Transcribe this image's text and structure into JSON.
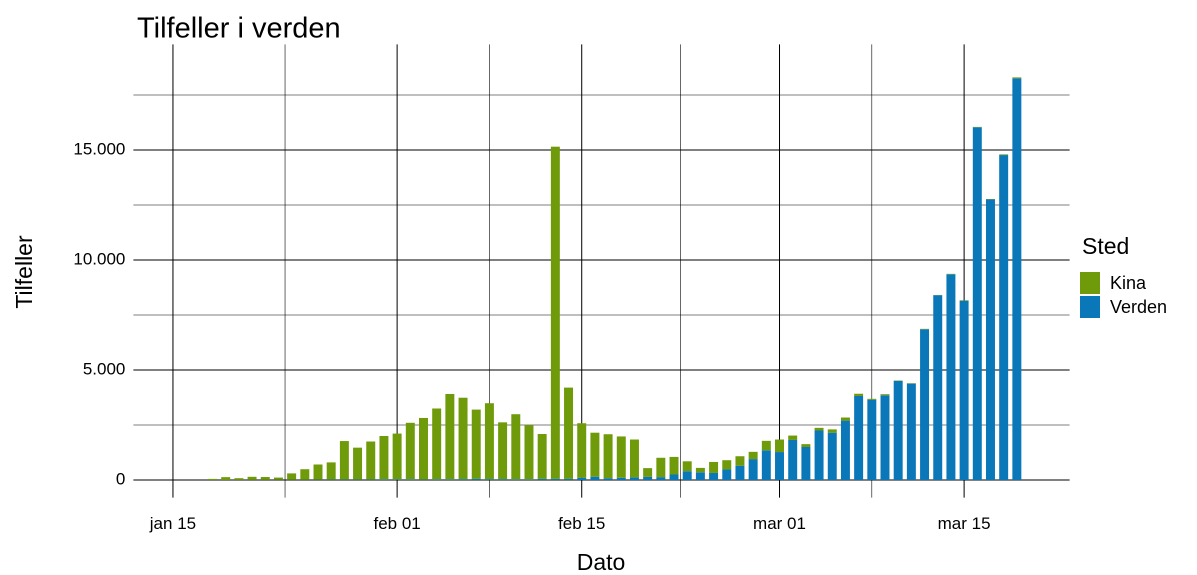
{
  "chart_data": {
    "type": "stacked-bar",
    "title": "Tilfeller i verden",
    "x_label": "Dato",
    "y_label": "Tilfeller",
    "legend_title": "Sted",
    "x": [
      "01-18",
      "01-19",
      "01-20",
      "01-21",
      "01-22",
      "01-23",
      "01-24",
      "01-25",
      "01-26",
      "01-27",
      "01-28",
      "01-29",
      "01-30",
      "01-31",
      "02-01",
      "02-02",
      "02-03",
      "02-04",
      "02-05",
      "02-06",
      "02-07",
      "02-08",
      "02-09",
      "02-10",
      "02-11",
      "02-12",
      "02-13",
      "02-14",
      "02-15",
      "02-16",
      "02-17",
      "02-18",
      "02-19",
      "02-20",
      "02-21",
      "02-22",
      "02-23",
      "02-24",
      "02-25",
      "02-26",
      "02-27",
      "02-28",
      "02-29",
      "03-01",
      "03-02",
      "03-03",
      "03-04",
      "03-05",
      "03-06",
      "03-07",
      "03-08",
      "03-09",
      "03-10",
      "03-11",
      "03-12",
      "03-13",
      "03-14",
      "03-15",
      "03-16",
      "03-17",
      "03-18",
      "03-19"
    ],
    "series": [
      {
        "name": "Verden",
        "color": "#0a77b8",
        "values": [
          0,
          0,
          2,
          5,
          5,
          10,
          10,
          10,
          15,
          20,
          20,
          20,
          20,
          30,
          30,
          30,
          20,
          30,
          30,
          40,
          50,
          40,
          40,
          30,
          30,
          50,
          50,
          50,
          100,
          150,
          80,
          100,
          120,
          140,
          130,
          250,
          400,
          350,
          320,
          480,
          650,
          950,
          1350,
          1270,
          1820,
          1500,
          2250,
          2150,
          2700,
          3820,
          3650,
          3850,
          4500,
          4380,
          6850,
          8400,
          9350,
          8150,
          16030,
          12750,
          14770,
          18260
        ]
      },
      {
        "name": "Kina",
        "color": "#6f9a0a",
        "values": [
          50,
          130,
          80,
          140,
          130,
          100,
          290,
          480,
          690,
          780,
          1750,
          1450,
          1730,
          1970,
          2080,
          2570,
          2800,
          3220,
          3880,
          3700,
          3150,
          3450,
          2580,
          2960,
          2470,
          2040,
          15100,
          4150,
          2480,
          2000,
          2000,
          1880,
          1720,
          400,
          880,
          800,
          450,
          200,
          500,
          420,
          430,
          330,
          430,
          570,
          200,
          130,
          120,
          150,
          140,
          100,
          40,
          50,
          20,
          20,
          20,
          10,
          20,
          20,
          20,
          20,
          30,
          40
        ]
      }
    ],
    "legend_order": [
      "Kina",
      "Verden"
    ],
    "xlim": [
      "01-12",
      "03-23"
    ],
    "xticks": [
      {
        "value": "01-15",
        "label": "jan 15"
      },
      {
        "value": "02-01",
        "label": "feb 01"
      },
      {
        "value": "02-15",
        "label": "feb 15"
      },
      {
        "value": "03-01",
        "label": "mar 01"
      },
      {
        "value": "03-15",
        "label": "mar 15"
      }
    ],
    "ylim": [
      -800,
      19800
    ],
    "yticks": [
      0,
      {
        "value": 5000,
        "label": "5.000"
      },
      {
        "value": 10000,
        "label": "10.000"
      },
      {
        "value": 15000,
        "label": "15.000"
      }
    ],
    "yminor": [
      2500,
      7500,
      12500,
      17500
    ],
    "grid": true,
    "legend": "right"
  }
}
